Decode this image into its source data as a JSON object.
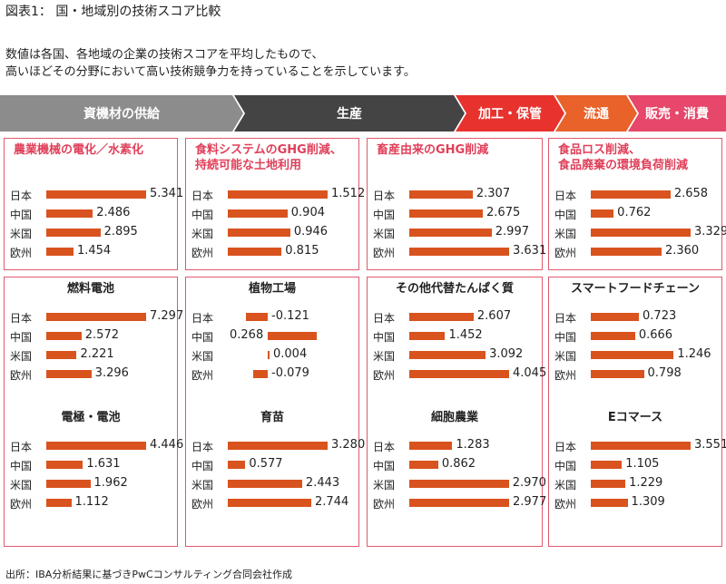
{
  "title": "図表1： 国・地域別の技術スコア比較",
  "description": [
    "数値は各国、各地域の企業の技術スコアを平均したもので、",
    "高いほどその分野において高い技術競争力を持っていることを示しています。"
  ],
  "stages": [
    {
      "label": "資機材の供給",
      "color": "#8c8c8c"
    },
    {
      "label": "生産",
      "color": "#444444"
    },
    {
      "label": "加工・保管",
      "color": "#e8322e"
    },
    {
      "label": "流通",
      "color": "#e8622a"
    },
    {
      "label": "販売・消費",
      "color": "#e6476a"
    }
  ],
  "colors": {
    "bar": "#d9531e",
    "panel_border": "#e05a6e",
    "pink_title": "#e0405a"
  },
  "source": "出所：IBA分析結果に基づきPwCコンサルティング合同会社作成",
  "chart_data": {
    "type": "bar",
    "countries": [
      "日本",
      "中国",
      "米国",
      "欧州"
    ],
    "charts": [
      {
        "title": "農業機械の電化／水素化",
        "values": [
          5.341,
          2.486,
          2.895,
          1.454
        ],
        "labels": [
          "5.341",
          "2.486",
          "2.895",
          "1.454"
        ]
      },
      {
        "title": "食料システムのGHG削減、\n持続可能な土地利用",
        "values": [
          1.512,
          0.904,
          0.946,
          0.815
        ],
        "labels": [
          "1.512",
          "0.904",
          "0.946",
          "0.815"
        ]
      },
      {
        "title": "畜産由来のGHG削減",
        "values": [
          2.307,
          2.675,
          2.997,
          3.631
        ],
        "labels": [
          "2.307",
          "2.675",
          "2.997",
          "3.631"
        ]
      },
      {
        "title": "食品ロス削減、\n食品廃棄の環境負荷削減",
        "values": [
          2.658,
          0.762,
          3.329,
          2.36
        ],
        "labels": [
          "2.658",
          "0.762",
          "3.329",
          "2.360"
        ]
      },
      {
        "title": "燃料電池",
        "values": [
          7.297,
          2.572,
          2.221,
          3.296
        ],
        "labels": [
          "7.297",
          "2.572",
          "2.221",
          "3.296"
        ]
      },
      {
        "title": "植物工場",
        "values": [
          -0.121,
          0.268,
          0.004,
          -0.079
        ],
        "labels": [
          "-0.121",
          "0.268",
          "0.004",
          "-0.079"
        ]
      },
      {
        "title": "その他代替たんぱく質",
        "values": [
          2.607,
          1.452,
          3.092,
          4.045
        ],
        "labels": [
          "2.607",
          "1.452",
          "3.092",
          "4.045"
        ]
      },
      {
        "title": "スマートフードチェーン",
        "values": [
          0.723,
          0.666,
          1.246,
          0.798
        ],
        "labels": [
          "0.723",
          "0.666",
          "1.246",
          "0.798"
        ]
      },
      {
        "title": "電極・電池",
        "values": [
          4.446,
          1.631,
          1.962,
          1.112
        ],
        "labels": [
          "4.446",
          "1.631",
          "1.962",
          "1.112"
        ]
      },
      {
        "title": "育苗",
        "values": [
          3.28,
          0.577,
          2.443,
          2.744
        ],
        "labels": [
          "3.280",
          "0.577",
          "2.443",
          "2.744"
        ]
      },
      {
        "title": "細胞農業",
        "values": [
          1.283,
          0.862,
          2.97,
          2.977
        ],
        "labels": [
          "1.283",
          "0.862",
          "2.970",
          "2.977"
        ]
      },
      {
        "title": "Eコマース",
        "values": [
          3.551,
          1.105,
          1.229,
          1.309
        ],
        "labels": [
          "3.551",
          "1.105",
          "1.229",
          "1.309"
        ]
      }
    ]
  }
}
